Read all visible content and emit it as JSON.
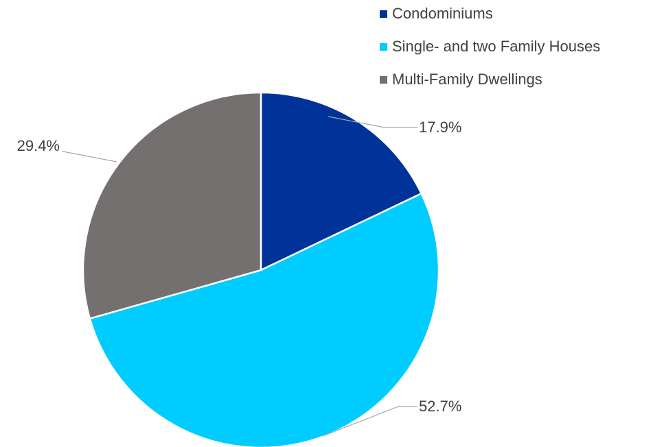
{
  "chart_data": {
    "type": "pie",
    "categories": [
      "Condominiums",
      "Single- and two Family Houses",
      "Multi-Family Dwellings"
    ],
    "values": [
      17.9,
      52.7,
      29.4
    ],
    "data_labels": [
      "17.9%",
      "52.7%",
      "29.4%"
    ],
    "colors": [
      "#00339A",
      "#00CCFF",
      "#757070"
    ],
    "legend_position": "top-right"
  }
}
